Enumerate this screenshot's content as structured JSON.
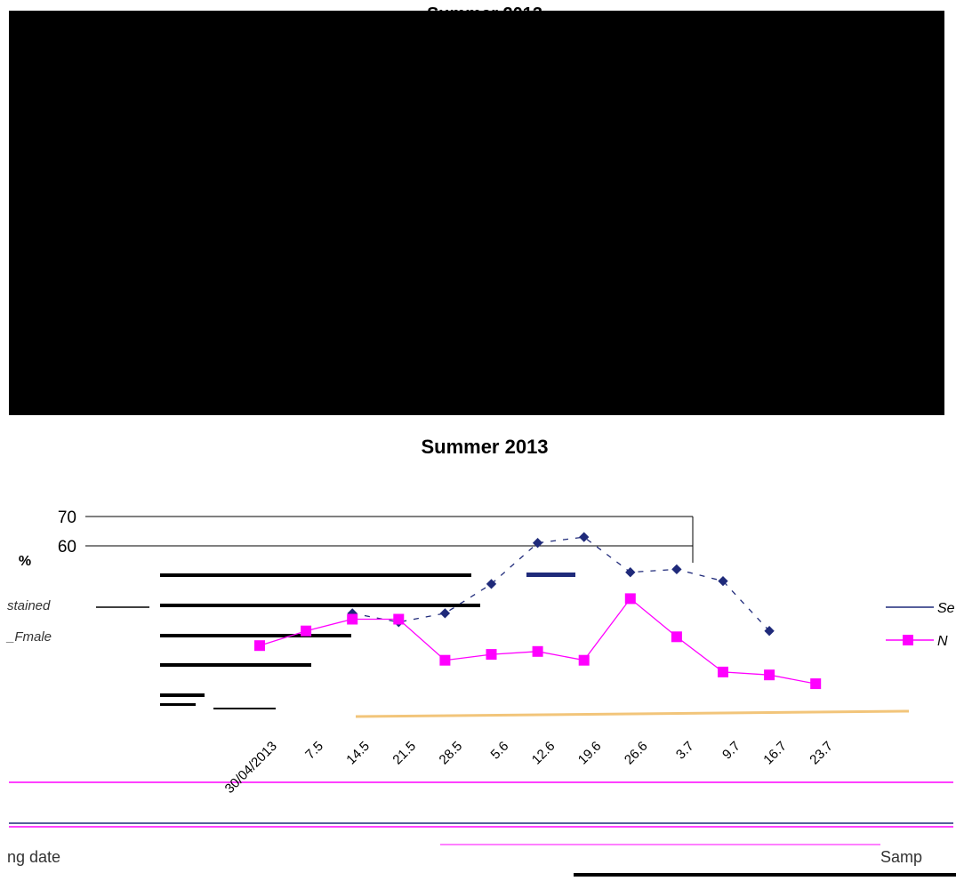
{
  "top_chart": {
    "title_partial": "Summer 2013"
  },
  "chart_data": {
    "type": "line",
    "title": "Summer 2013",
    "ylabel_partial": "%",
    "xlabel_partial": "ng date",
    "xlabel_right_partial": "Samp",
    "yticks": [
      "70",
      "60"
    ],
    "categories": [
      "30/04/2013",
      "7.5",
      "14.5",
      "21.5",
      "28.5",
      "5.6",
      "12.6",
      "19.6",
      "26.6",
      "3.7",
      "9.7",
      "16.7",
      "23.7"
    ],
    "legend_partial": [
      "Se",
      "N"
    ],
    "left_labels_partial": [
      "stained",
      "_Fmale"
    ],
    "series": [
      {
        "name": "Se",
        "color": "#1f2a7a",
        "values": [
          null,
          null,
          37,
          34,
          37,
          47,
          61,
          63,
          51,
          52,
          48,
          31,
          null
        ]
      },
      {
        "name": "N",
        "color": "#ff00ff",
        "values": [
          26,
          31,
          35,
          35,
          21,
          23,
          24,
          21,
          42,
          29,
          17,
          16,
          13
        ]
      }
    ],
    "ylim": [
      0,
      70
    ],
    "colors": {
      "series1": "#1f2a7a",
      "series2": "#ff00ff",
      "accent": "#f2c57a"
    }
  }
}
